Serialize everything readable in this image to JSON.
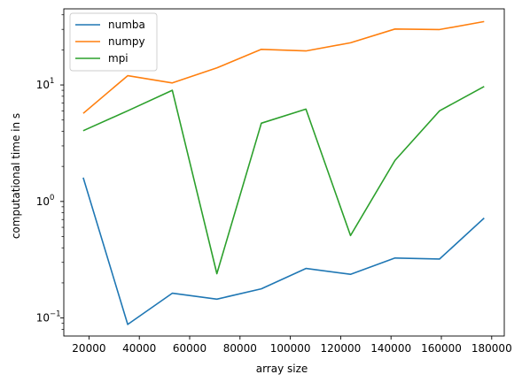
{
  "chart_data": {
    "type": "line",
    "title": "",
    "xlabel": "array size",
    "ylabel": "computational time in s",
    "yscale": "log",
    "xlim": [
      10000,
      185000
    ],
    "ylim": [
      0.07,
      45
    ],
    "x_ticks": [
      20000,
      40000,
      60000,
      80000,
      100000,
      120000,
      140000,
      160000,
      180000
    ],
    "x_tick_labels": [
      "20000",
      "40000",
      "60000",
      "80000",
      "100000",
      "120000",
      "140000",
      "160000",
      "180000"
    ],
    "y_ticks": [
      0.1,
      1,
      10
    ],
    "y_tick_labels": [
      "10",
      "10",
      "10"
    ],
    "y_tick_exponents": [
      "−1",
      "0",
      "1"
    ],
    "grid": false,
    "legend_position": "top-left",
    "x": [
      17700,
      35400,
      53100,
      70800,
      88500,
      106200,
      123900,
      141600,
      159300,
      177000
    ],
    "series": [
      {
        "name": "numba",
        "color": "#1f77b4",
        "values": [
          1.6,
          0.088,
          0.163,
          0.145,
          0.178,
          0.266,
          0.237,
          0.327,
          0.321,
          0.72
        ]
      },
      {
        "name": "numpy",
        "color": "#ff7f0e",
        "values": [
          5.7,
          12.0,
          10.4,
          14.0,
          20.2,
          19.6,
          23.0,
          30.2,
          29.9,
          35.0
        ]
      },
      {
        "name": "mpi",
        "color": "#2ca02c",
        "values": [
          4.05,
          6.0,
          9.0,
          0.24,
          4.7,
          6.2,
          0.51,
          2.25,
          6.0,
          9.7
        ]
      }
    ]
  }
}
